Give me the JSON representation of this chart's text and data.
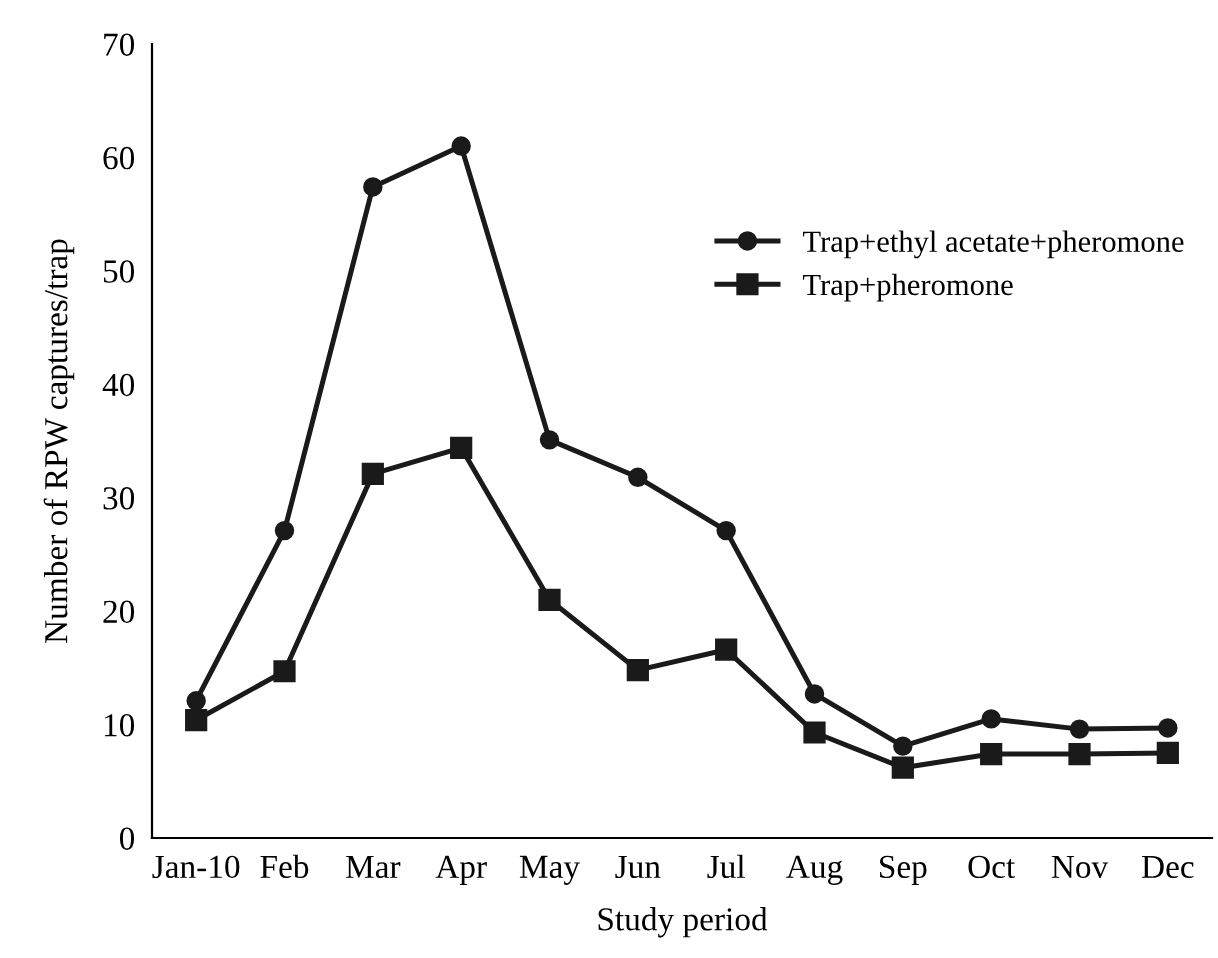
{
  "chart_data": {
    "type": "line",
    "xlabel": "Study period",
    "ylabel": "Number of RPW captures/trap",
    "categories": [
      "Jan-10",
      "Feb",
      "Mar",
      "Apr",
      "May",
      "Jun",
      "Jul",
      "Aug",
      "Sep",
      "Oct",
      "Nov",
      "Dec"
    ],
    "series": [
      {
        "name": "Trap+ethyl acetate+pheromone",
        "color": "#1a1a1a",
        "marker": "circle",
        "values": [
          12.1,
          27.1,
          57.4,
          61.0,
          35.1,
          31.8,
          27.1,
          12.7,
          8.1,
          10.5,
          9.6,
          9.7
        ]
      },
      {
        "name": "Trap+pheromone",
        "color": "#1a1a1a",
        "marker": "square",
        "values": [
          10.4,
          14.7,
          32.1,
          34.4,
          21.0,
          14.8,
          16.6,
          9.3,
          6.2,
          7.4,
          7.4,
          7.5
        ]
      }
    ],
    "ylim": [
      0,
      70
    ],
    "yticks": [
      0,
      10,
      20,
      30,
      40,
      50,
      60,
      70
    ],
    "grid": false,
    "legend": "top right",
    "line_style": "solid"
  }
}
